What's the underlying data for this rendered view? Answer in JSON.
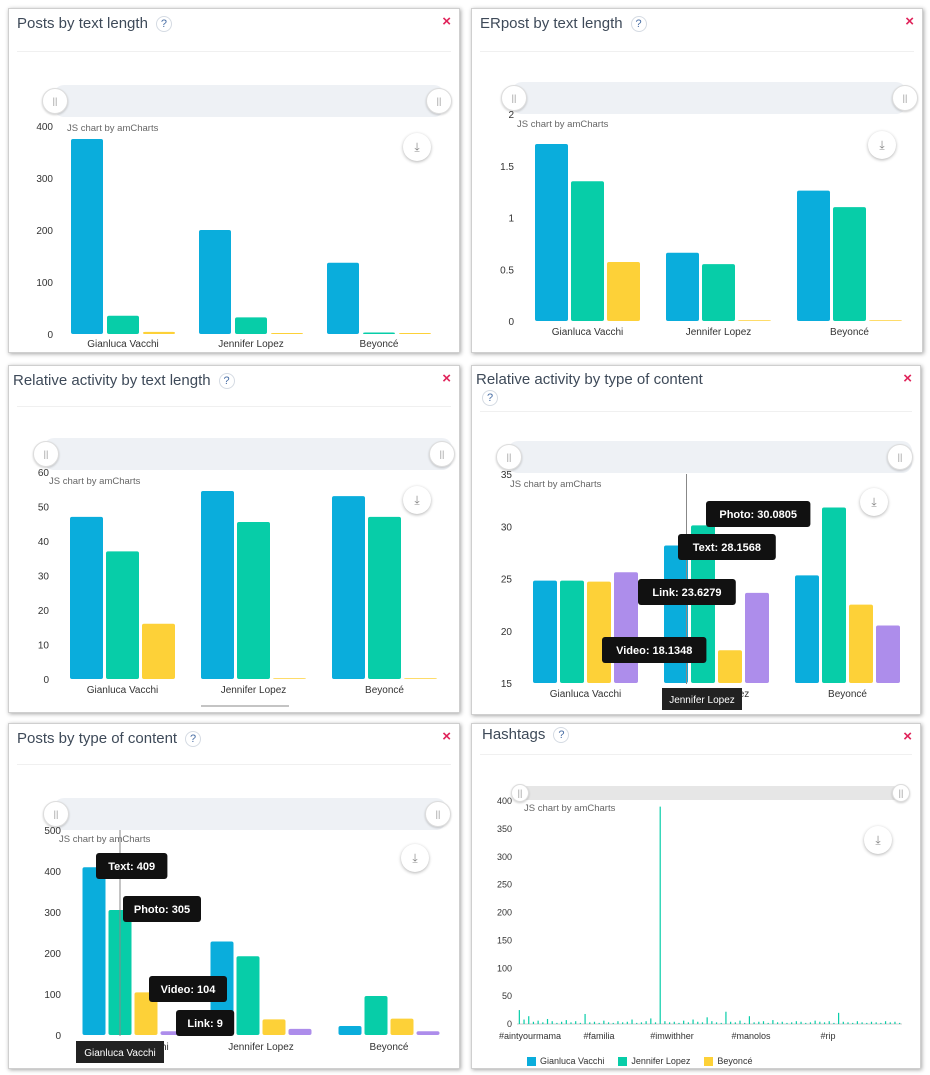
{
  "colors": {
    "series": [
      "#0aaddc",
      "#07cda8",
      "#fdd138",
      "#ad8deb"
    ],
    "close": "#e0235a"
  },
  "labels": {
    "credit": "JS chart by amCharts",
    "help": "?",
    "close": "×"
  },
  "panels": [
    {
      "id": "posts-text-length",
      "title": "Posts by text length"
    },
    {
      "id": "erpost-text-length",
      "title": "ERpost by text length"
    },
    {
      "id": "relative-text-length",
      "title": "Relative activity by text length"
    },
    {
      "id": "relative-type-content",
      "title": "Relative activity by type of content"
    },
    {
      "id": "posts-type-content",
      "title": "Posts by type of content"
    },
    {
      "id": "hashtags",
      "title": "Hashtags"
    }
  ],
  "legend": [
    "Gianluca Vacchi",
    "Jennifer Lopez",
    "Beyoncé"
  ],
  "chart_data": [
    {
      "type": "bar",
      "panel": "posts-text-length",
      "categories": [
        "Gianluca Vacchi",
        "Jennifer Lopez",
        "Beyoncé"
      ],
      "ylim": [
        0,
        400
      ],
      "yticks": [
        0,
        100,
        200,
        300,
        400
      ],
      "series": [
        {
          "values": [
            375,
            200,
            137
          ]
        },
        {
          "values": [
            35,
            32,
            3
          ]
        },
        {
          "values": [
            4,
            1,
            1
          ]
        }
      ]
    },
    {
      "type": "bar",
      "panel": "erpost-text-length",
      "categories": [
        "Gianluca Vacchi",
        "Jennifer Lopez",
        "Beyoncé"
      ],
      "ylim": [
        0,
        2.0
      ],
      "yticks": [
        0,
        0.5,
        1.0,
        1.5,
        2.0
      ],
      "series": [
        {
          "values": [
            1.71,
            0.66,
            1.26
          ]
        },
        {
          "values": [
            1.35,
            0.55,
            1.1
          ]
        },
        {
          "values": [
            0.57,
            0,
            0
          ]
        }
      ]
    },
    {
      "type": "bar",
      "panel": "relative-text-length",
      "categories": [
        "Gianluca Vacchi",
        "Jennifer Lopez",
        "Beyoncé"
      ],
      "ylim": [
        0,
        60
      ],
      "yticks": [
        0,
        10,
        20,
        30,
        40,
        50,
        60
      ],
      "series": [
        {
          "values": [
            47,
            54.5,
            53
          ]
        },
        {
          "values": [
            37,
            45.5,
            47
          ]
        },
        {
          "values": [
            16,
            0,
            0
          ]
        }
      ]
    },
    {
      "type": "bar",
      "panel": "relative-type-content",
      "categories": [
        "Gianluca Vacchi",
        "Jennifer Lopez",
        "Beyoncé"
      ],
      "ylim": [
        15,
        35
      ],
      "yticks": [
        15,
        20,
        25,
        30,
        35
      ],
      "series": [
        {
          "name": "Text",
          "values": [
            24.8,
            28.1568,
            25.3
          ]
        },
        {
          "name": "Photo",
          "values": [
            24.8,
            30.0805,
            31.8
          ]
        },
        {
          "name": "Video",
          "values": [
            24.7,
            18.1348,
            22.5
          ]
        },
        {
          "name": "Link",
          "values": [
            25.6,
            23.6279,
            20.5
          ]
        }
      ],
      "tooltips": [
        {
          "text": "Photo: 30.0805",
          "x": 30.0805
        },
        {
          "text": "Text: 28.1568",
          "x": 28.1568
        },
        {
          "text": "Link: 23.6279",
          "x": 23.6279
        },
        {
          "text": "Video: 18.1348",
          "x": 18.1348
        }
      ],
      "hover_category": "Jennifer Lopez"
    },
    {
      "type": "bar",
      "panel": "posts-type-content",
      "categories": [
        "Gianluca Vacchi",
        "Jennifer Lopez",
        "Beyoncé"
      ],
      "ylim": [
        0,
        500
      ],
      "yticks": [
        0,
        100,
        200,
        300,
        400,
        500
      ],
      "series": [
        {
          "name": "Text",
          "values": [
            409,
            228,
            22
          ]
        },
        {
          "name": "Photo",
          "values": [
            305,
            192,
            95
          ]
        },
        {
          "name": "Video",
          "values": [
            104,
            38,
            40
          ]
        },
        {
          "name": "Link",
          "values": [
            9,
            15,
            9
          ]
        }
      ],
      "tooltips": [
        {
          "text": "Text: 409"
        },
        {
          "text": "Photo: 305"
        },
        {
          "text": "Video: 104"
        },
        {
          "text": "Link: 9"
        }
      ],
      "hover_category": "Gianluca Vacchi"
    },
    {
      "type": "bar",
      "panel": "hashtags",
      "ylim": [
        0,
        400
      ],
      "yticks": [
        0,
        50,
        100,
        150,
        200,
        250,
        300,
        350,
        400
      ],
      "xlabels": [
        "#aintyourmama",
        "#familia",
        "#imwithher",
        "#manolos",
        "#rip"
      ],
      "spike_value": 390,
      "small_values": [
        25,
        8,
        14,
        4,
        6,
        3,
        9,
        5,
        2,
        4,
        7,
        3,
        5,
        2,
        18,
        3,
        4,
        2,
        6,
        3,
        2,
        5,
        3,
        4,
        8,
        2,
        3,
        5,
        10,
        3,
        390,
        5,
        3,
        4,
        2,
        6,
        3,
        8,
        4,
        3,
        12,
        5,
        3,
        2,
        22,
        4,
        3,
        6,
        2,
        14,
        3,
        4,
        5,
        2,
        7,
        3,
        4,
        2,
        3,
        5,
        4,
        2,
        3,
        6,
        4,
        3,
        5,
        2,
        20,
        4,
        3,
        2,
        5,
        3,
        2,
        4,
        3,
        2,
        5,
        3,
        4,
        2
      ]
    }
  ]
}
